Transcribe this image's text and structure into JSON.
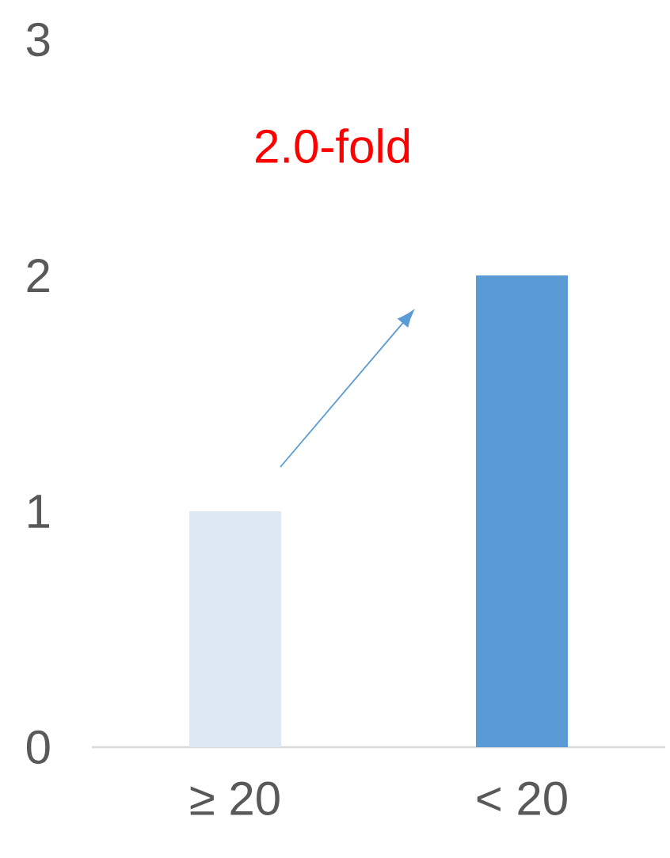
{
  "chart_data": {
    "type": "bar",
    "categories": [
      "≥ 20",
      "< 20"
    ],
    "values": [
      1,
      2
    ],
    "colors": [
      "#dee8f4",
      "#5b9bd5"
    ],
    "ylim": [
      0,
      3
    ],
    "yticks": [
      0,
      1,
      2,
      3
    ],
    "annotations": [
      "2.0-fold"
    ]
  }
}
